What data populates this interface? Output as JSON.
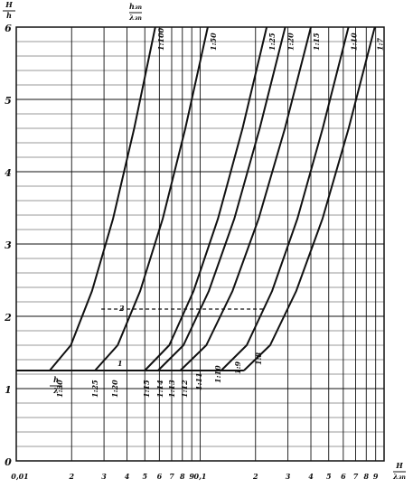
{
  "chart_data": {
    "type": "line",
    "y_label": {
      "num": "H",
      "den": "h"
    },
    "x_label": {
      "num": "H",
      "den": "λ",
      "den_sub": "зп"
    },
    "legend_header": {
      "num": "h",
      "num_sub": "зп",
      "den": "λ",
      "den_sub": "зп"
    },
    "baseline_label": {
      "num": "h",
      "den": "λ"
    },
    "xscale": "log",
    "xlim": [
      0.01,
      1
    ],
    "xticks": [
      {
        "value": 0.01,
        "label": "0,01"
      },
      {
        "value": 0.02,
        "label": "2"
      },
      {
        "value": 0.03,
        "label": "3"
      },
      {
        "value": 0.04,
        "label": "4"
      },
      {
        "value": 0.05,
        "label": "5"
      },
      {
        "value": 0.06,
        "label": "6"
      },
      {
        "value": 0.07,
        "label": "7"
      },
      {
        "value": 0.08,
        "label": "8"
      },
      {
        "value": 0.09,
        "label": "9"
      },
      {
        "value": 0.1,
        "label": "0,1"
      },
      {
        "value": 0.2,
        "label": "2"
      },
      {
        "value": 0.3,
        "label": "3"
      },
      {
        "value": 0.4,
        "label": "4"
      },
      {
        "value": 0.5,
        "label": "5"
      },
      {
        "value": 0.6,
        "label": "6"
      },
      {
        "value": 0.7,
        "label": "7"
      },
      {
        "value": 0.8,
        "label": "8"
      },
      {
        "value": 0.9,
        "label": "9"
      }
    ],
    "ylim": [
      0,
      6
    ],
    "yticks": [
      0,
      1,
      2,
      3,
      4,
      5,
      6
    ],
    "grid": true,
    "minor_ystep": 0.2,
    "series": [
      {
        "name": "1:100",
        "color": "#111111",
        "x": [
          0.0152,
          0.0198,
          0.0258,
          0.0336,
          0.0438,
          0.057
        ],
        "values": [
          1.25,
          1.6,
          2.35,
          3.35,
          4.6,
          6
        ]
      },
      {
        "name": "1:50",
        "color": "#111111",
        "x": [
          0.0268,
          0.0356,
          0.0472,
          0.0626,
          0.0831,
          0.11
        ],
        "values": [
          1.25,
          1.6,
          2.35,
          3.35,
          4.6,
          6
        ]
      },
      {
        "name": "1:25",
        "color": "#111111",
        "x": [
          0.05,
          0.0679,
          0.0921,
          0.125,
          0.17,
          0.23
        ],
        "values": [
          1.25,
          1.6,
          2.35,
          3.35,
          4.6,
          6
        ]
      },
      {
        "name": "1:20",
        "color": "#111111",
        "x": [
          0.059,
          0.0811,
          0.1115,
          0.1533,
          0.2108,
          0.29
        ],
        "values": [
          1.25,
          1.6,
          2.35,
          3.35,
          4.6,
          6
        ]
      },
      {
        "name": "1:15",
        "color": "#111111",
        "x": [
          0.078,
          0.108,
          0.15,
          0.208,
          0.289,
          0.4
        ],
        "values": [
          1.25,
          1.6,
          2.35,
          3.35,
          4.6,
          6
        ]
      },
      {
        "name": "1:10",
        "color": "#111111",
        "x": [
          0.13,
          0.179,
          0.246,
          0.338,
          0.464,
          0.64
        ],
        "values": [
          1.25,
          1.6,
          2.35,
          3.35,
          4.6,
          6
        ]
      },
      {
        "name": "1:7",
        "color": "#111111",
        "x": [
          0.173,
          0.24,
          0.333,
          0.463,
          0.642,
          0.89
        ],
        "values": [
          1.25,
          1.6,
          2.35,
          3.35,
          4.6,
          6
        ]
      }
    ],
    "baseline": {
      "x": [
        0.01,
        0.173
      ],
      "values": [
        1.25,
        1.25
      ]
    },
    "reference_line": {
      "x": [
        0.029,
        0.22
      ],
      "values": [
        2.1,
        2.1
      ]
    },
    "bottom_labels": [
      "1:30",
      "1:25",
      "1:20",
      "1:15",
      "1:14",
      "1:13",
      "1:12",
      "1:11",
      "1:10",
      "1:9",
      "1:8"
    ],
    "annotations": [
      "1",
      "2"
    ]
  }
}
